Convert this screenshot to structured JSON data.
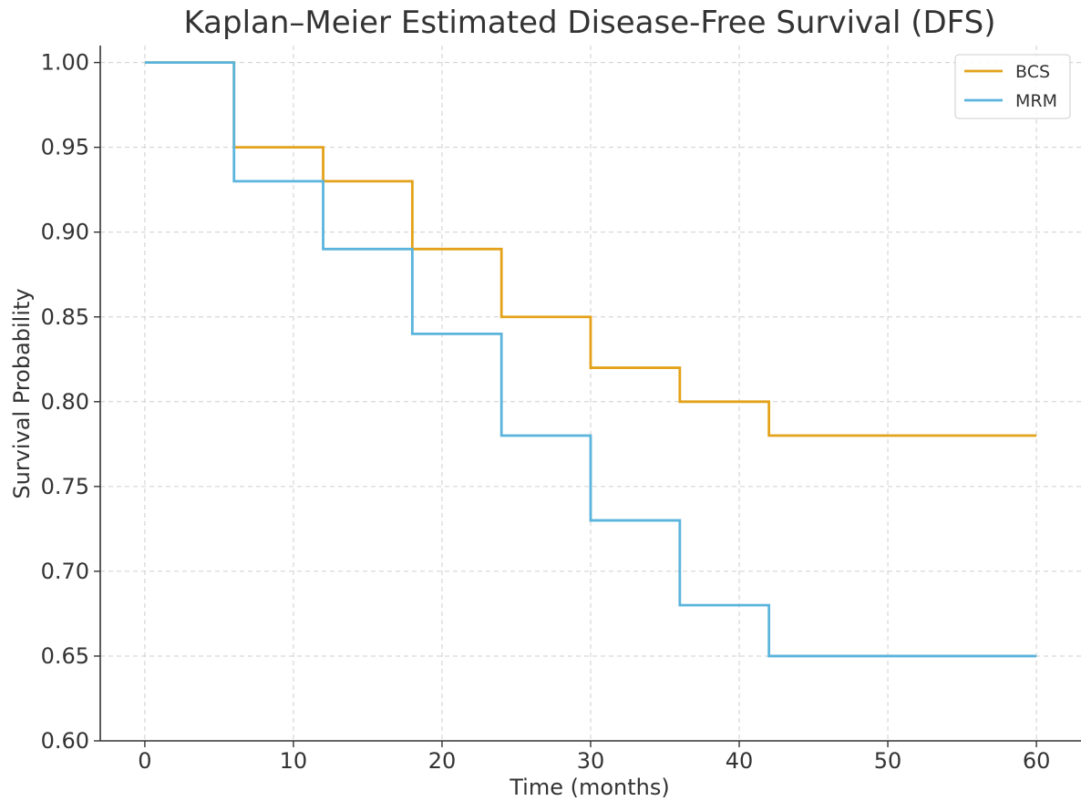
{
  "chart_data": {
    "type": "line",
    "title": "Kaplan–Meier Estimated Disease-Free Survival (DFS)",
    "xlabel": "Time (months)",
    "ylabel": "Survival Probability",
    "xlim": [
      -3,
      63
    ],
    "ylim": [
      0.6,
      1.01
    ],
    "x_ticks": [
      0,
      10,
      20,
      30,
      40,
      50,
      60
    ],
    "y_ticks": [
      0.6,
      0.65,
      0.7,
      0.75,
      0.8,
      0.85,
      0.9,
      0.95,
      1.0
    ],
    "y_tick_labels": [
      "0.60",
      "0.65",
      "0.70",
      "0.75",
      "0.80",
      "0.85",
      "0.90",
      "0.95",
      "1.00"
    ],
    "grid": true,
    "step": "post",
    "legend_position": "top-right",
    "series": [
      {
        "name": "BCS",
        "color": "#E3A21A",
        "x": [
          0,
          6,
          12,
          18,
          24,
          30,
          36,
          42,
          60
        ],
        "y": [
          1.0,
          0.95,
          0.93,
          0.89,
          0.85,
          0.82,
          0.8,
          0.78,
          0.78
        ]
      },
      {
        "name": "MRM",
        "color": "#5BB4DC",
        "x": [
          0,
          6,
          12,
          18,
          24,
          30,
          36,
          42,
          60
        ],
        "y": [
          1.0,
          0.93,
          0.89,
          0.84,
          0.78,
          0.73,
          0.68,
          0.65,
          0.65
        ]
      }
    ]
  }
}
